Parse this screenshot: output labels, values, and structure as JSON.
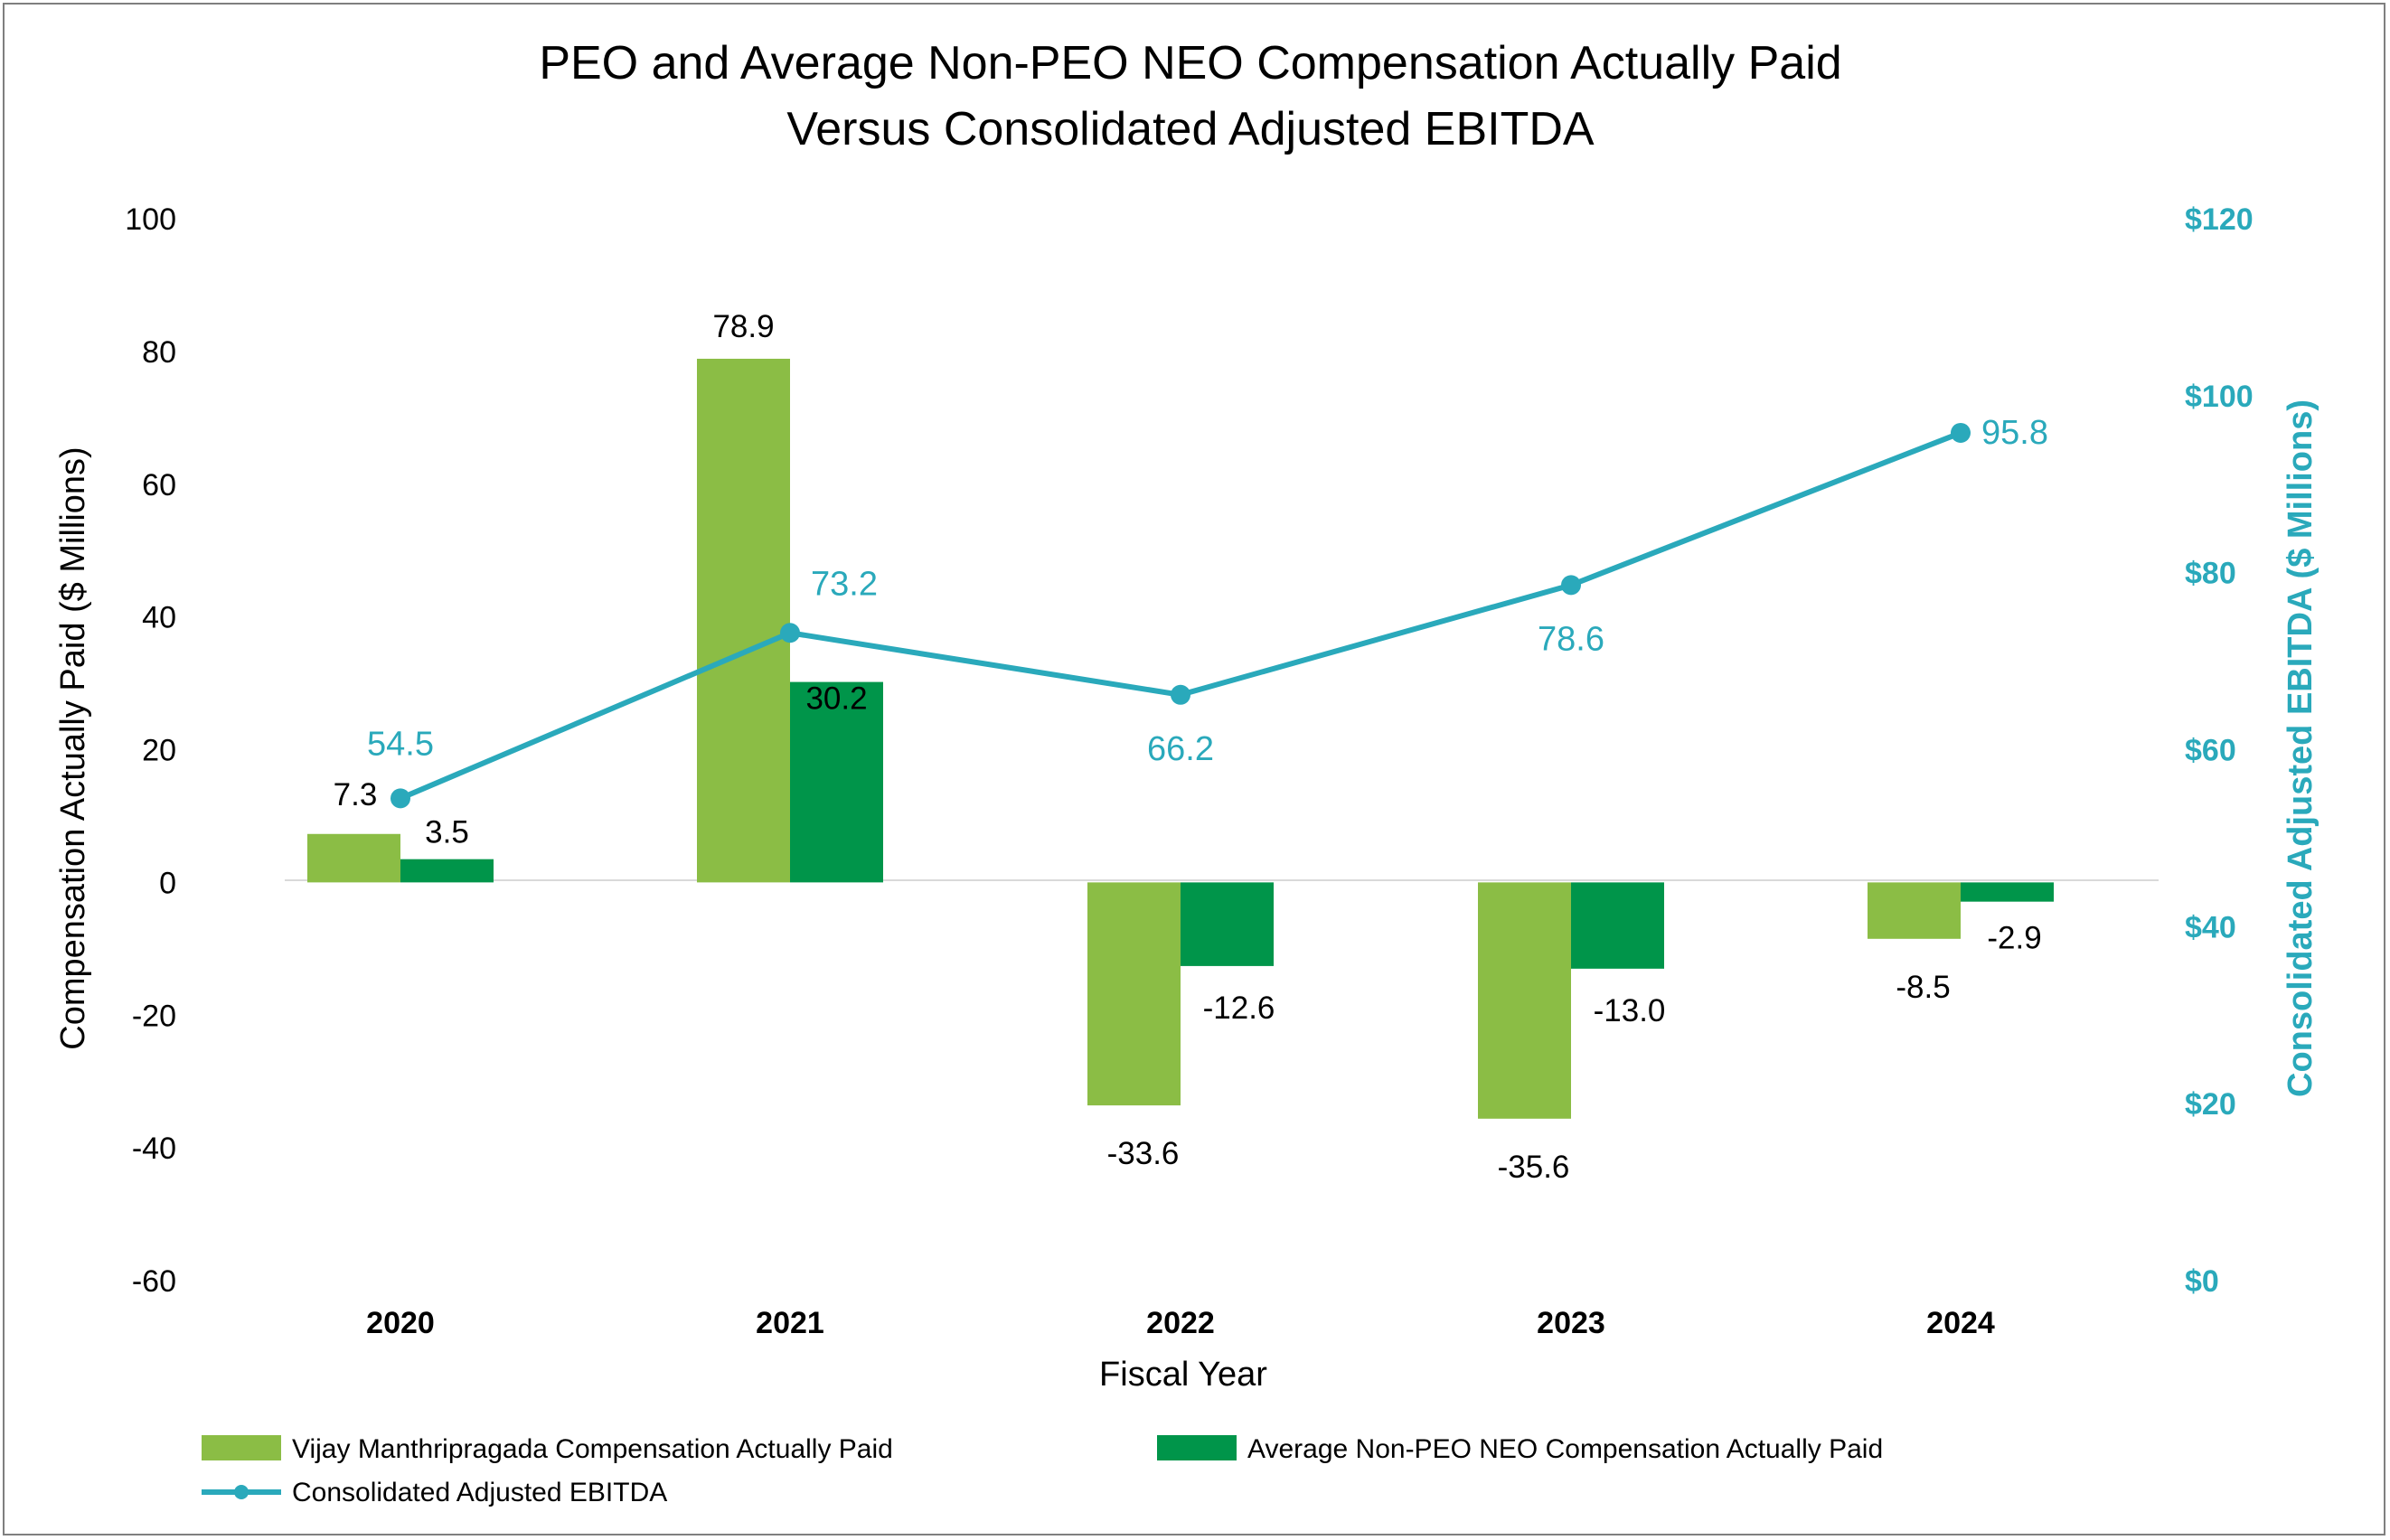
{
  "chart_data": {
    "type": "bar",
    "title": [
      "PEO and Average Non-PEO NEO Compensation Actually Paid",
      "Versus Consolidated Adjusted EBITDA"
    ],
    "xlabel": "Fiscal Year",
    "ylabel": "Compensation Actually Paid ($ Millions)",
    "y2label": "Consolidated Adjusted EBITDA ($ Millions)",
    "categories": [
      "2020",
      "2021",
      "2022",
      "2023",
      "2024"
    ],
    "ylim": [
      -60,
      100
    ],
    "yticks": [
      "100",
      "80",
      "60",
      "40",
      "20",
      "0",
      "-20",
      "-40",
      "-60"
    ],
    "y2lim": [
      0,
      120
    ],
    "y2ticks": [
      "$120",
      "$100",
      "$80",
      "$60",
      "$40",
      "$20",
      "$0"
    ],
    "grid": false,
    "legend_position": "bottom",
    "series": [
      {
        "name": "Vijay Manthripragada Compensation Actually Paid",
        "type": "bar",
        "axis": "left",
        "color": "#8bbd45",
        "values": [
          7.3,
          78.9,
          -33.6,
          -35.6,
          -8.5
        ],
        "labels": [
          "7.3",
          "78.9",
          "-33.6",
          "-35.6",
          "-8.5"
        ]
      },
      {
        "name": "Average Non-PEO NEO Compensation Actually Paid",
        "type": "bar",
        "axis": "left",
        "color": "#00954a",
        "values": [
          3.5,
          30.2,
          -12.6,
          -13.0,
          -2.9
        ],
        "labels": [
          "3.5",
          "30.2",
          "-12.6",
          "-13.0",
          "-2.9"
        ]
      },
      {
        "name": "Consolidated Adjusted EBITDA",
        "type": "line",
        "axis": "right",
        "color": "#2aa9bb",
        "values": [
          54.5,
          73.2,
          66.2,
          78.6,
          95.8
        ],
        "labels": [
          "54.5",
          "73.2",
          "66.2",
          "78.6",
          "95.8"
        ]
      }
    ]
  }
}
